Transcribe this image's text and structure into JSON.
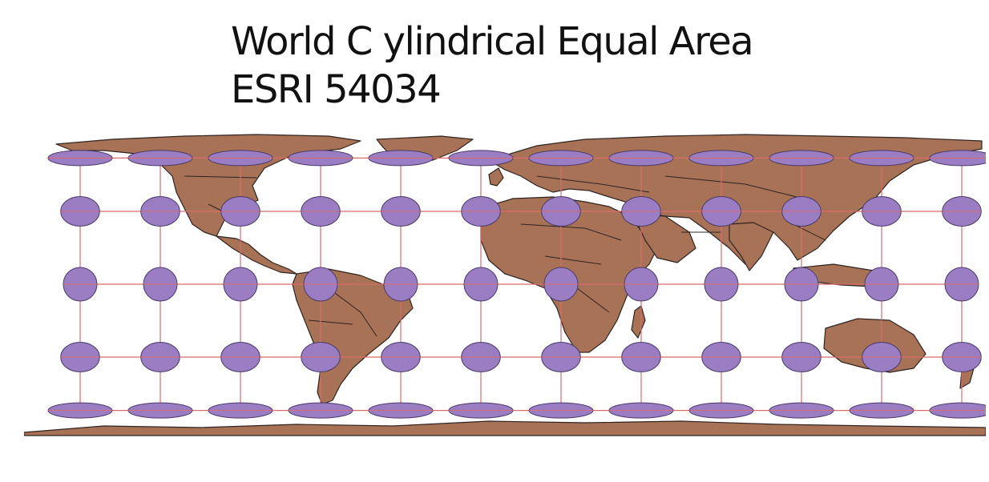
{
  "map": {
    "title_line1": "World C ylindrical Equal Area",
    "title_line2": "ESRI 54034",
    "colors": {
      "land": "#a87256",
      "border": "#2e2420",
      "indicatrix_fill": "#9a7dc3",
      "indicatrix_stroke": "#4a3a6a",
      "graticule": "#d96b6b",
      "background": "#ffffff"
    },
    "graticule": {
      "lon_step_deg": 30,
      "lat_values_deg": [
        -60,
        -30,
        0,
        30,
        60
      ],
      "lon_min": -180,
      "lon_max": 180
    },
    "indicatrix": {
      "lons_deg": [
        -150,
        -120,
        -90,
        -60,
        -30,
        0,
        30,
        60,
        90,
        120,
        150,
        180
      ],
      "lats_deg": [
        -60,
        -30,
        0,
        30,
        60
      ]
    }
  }
}
